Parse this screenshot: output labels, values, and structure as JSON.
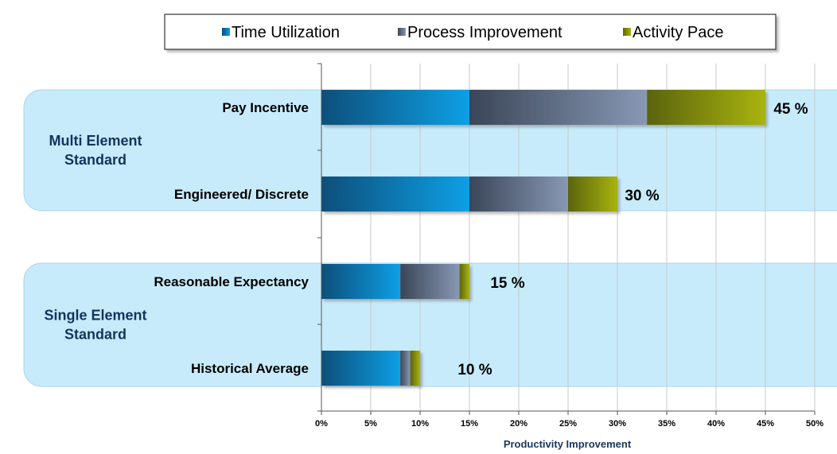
{
  "chart_data": {
    "type": "bar",
    "orientation": "horizontal",
    "stacked": true,
    "categories": [
      "Pay Incentive",
      "Engineered/ Discrete",
      "Reasonable Expectancy",
      "Historical Average"
    ],
    "groups": [
      {
        "label_lines": [
          "Multi Element",
          "Standard"
        ],
        "categories": [
          "Pay Incentive",
          "Engineered/ Discrete"
        ]
      },
      {
        "label_lines": [
          "Single Element",
          "Standard"
        ],
        "categories": [
          "Reasonable Expectancy",
          "Historical Average"
        ]
      }
    ],
    "series": [
      {
        "name": "Time Utilization",
        "values": [
          15,
          15,
          8,
          8
        ],
        "color_light": "#0aa0e6",
        "color_dark": "#0b4f7a"
      },
      {
        "name": "Process Improvement",
        "values": [
          18,
          10,
          6,
          1
        ],
        "color_light": "#8898b4",
        "color_dark": "#3a4658"
      },
      {
        "name": "Activity Pace",
        "values": [
          12,
          5,
          1,
          1
        ],
        "color_light": "#a8b40a",
        "color_dark": "#5a6410"
      }
    ],
    "totals_labels": [
      "45 %",
      "30 %",
      "15 %",
      "10 %"
    ],
    "xlim": [
      0,
      50
    ],
    "xticks": [
      0,
      5,
      10,
      15,
      20,
      25,
      30,
      35,
      40,
      45,
      50
    ],
    "tick_suffix": "%",
    "xlabel": "Productivity Improvement",
    "ylabel": "",
    "title": "",
    "grid": true,
    "legend_position": "top",
    "group_band_color": "#c7ebfb"
  }
}
